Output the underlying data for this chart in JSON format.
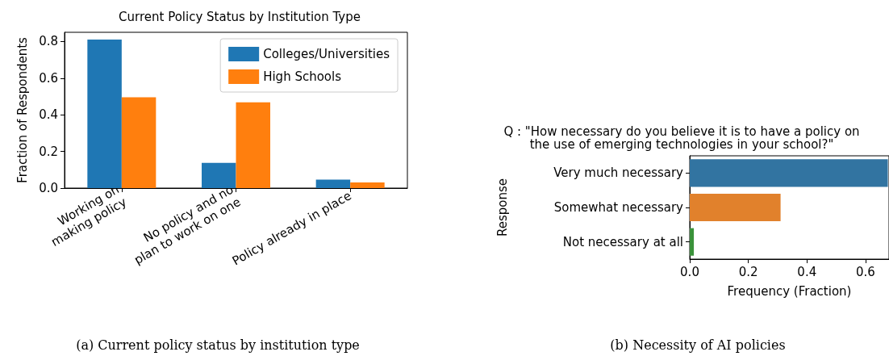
{
  "chart_data": [
    {
      "type": "bar",
      "title": "Current Policy Status by Institution Type",
      "ylabel": "Fraction of Respondents",
      "categories": [
        "Working on\nmaking policy",
        "No policy and no\nplan to work on one",
        "Policy already in place"
      ],
      "series": [
        {
          "name": "Colleges/Universities",
          "color": "#1f77b4",
          "values": [
            0.81,
            0.138,
            0.046
          ]
        },
        {
          "name": "High Schools",
          "color": "#ff7f0e",
          "values": [
            0.495,
            0.468,
            0.031
          ]
        }
      ],
      "ylim": [
        0,
        0.85
      ],
      "yticks": [
        {
          "value": 0,
          "label": "0.0"
        },
        {
          "value": 0.2,
          "label": "0.2"
        },
        {
          "value": 0.4,
          "label": "0.4"
        },
        {
          "value": 0.6,
          "label": "0.6"
        },
        {
          "value": 0.8,
          "label": "0.8"
        }
      ],
      "legend": "top right",
      "annotations": [
        "(a) Current policy status by institution type"
      ]
    },
    {
      "type": "bar",
      "orientation": "horizontal",
      "title": "Q : \"How necessary do you believe it is to have a policy on\nthe use of emerging technologies in your school?\"",
      "xlabel": "Frequency (Fraction)",
      "ylabel": "Response",
      "categories": [
        "Very much necessary",
        "Somewhat necessary",
        "Not necessary at all"
      ],
      "values": [
        0.676,
        0.31,
        0.014
      ],
      "colors": [
        "#3274a1",
        "#e1812c",
        "#3a923a"
      ],
      "xlim": [
        0,
        0.68
      ],
      "xticks": [
        {
          "value": 0,
          "label": "0.0"
        },
        {
          "value": 0.2,
          "label": "0.2"
        },
        {
          "value": 0.4,
          "label": "0.4"
        },
        {
          "value": 0.6,
          "label": "0.6"
        }
      ],
      "legend": false,
      "annotations": [
        "(b) Necessity of AI policies"
      ]
    }
  ]
}
